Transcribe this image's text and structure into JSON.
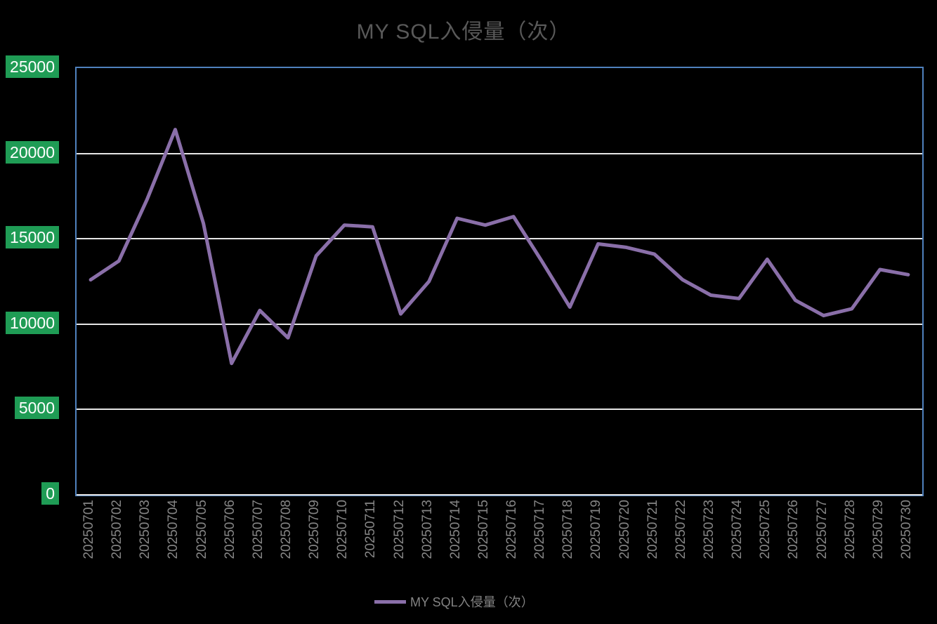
{
  "title": "MY SQL入侵量（次）",
  "legend": {
    "label": "MY SQL入侵量（次）"
  },
  "colors": {
    "background": "#000000",
    "title_text": "#595959",
    "plot_border": "#4F81BD",
    "gridline": "#E6E6E6",
    "series_line": "#8A6FA9",
    "y_tick_bg": "#1F9C55",
    "y_tick_text": "#FFFFFF",
    "x_tick_text": "#858585",
    "legend_text": "#848484"
  },
  "chart_data": {
    "type": "line",
    "title": "MY SQL入侵量（次）",
    "xlabel": "",
    "ylabel": "",
    "ylim": [
      0,
      25000
    ],
    "yticks": [
      0,
      5000,
      10000,
      15000,
      20000,
      25000
    ],
    "grid": true,
    "legend_position": "bottom",
    "categories": [
      "20250701",
      "20250702",
      "20250703",
      "20250704",
      "20250705",
      "20250706",
      "20250707",
      "20250708",
      "20250709",
      "20250710",
      "20250711",
      "20250712",
      "20250713",
      "20250714",
      "20250715",
      "20250716",
      "20250717",
      "20250718",
      "20250719",
      "20250720",
      "20250721",
      "20250722",
      "20250723",
      "20250724",
      "20250725",
      "20250726",
      "20250727",
      "20250728",
      "20250729",
      "20250730"
    ],
    "series": [
      {
        "name": "MY SQL入侵量（次）",
        "values": [
          12600,
          13700,
          17300,
          21400,
          15900,
          7700,
          10800,
          9200,
          14000,
          15800,
          15700,
          10600,
          12500,
          16200,
          15800,
          16300,
          13700,
          11000,
          14700,
          14500,
          14100,
          12600,
          11700,
          11500,
          13800,
          11400,
          10500,
          10900,
          13200,
          12900
        ]
      }
    ]
  }
}
